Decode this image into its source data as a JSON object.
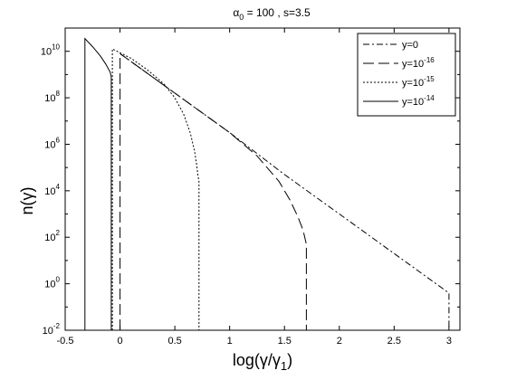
{
  "chart_data": {
    "type": "line",
    "title_main": "α",
    "title_sub": "0",
    "title_rest": " = 100 , s=3.5",
    "xlabel_main": "log(γ/γ",
    "xlabel_sub": "1",
    "xlabel_end": ")",
    "ylabel": "n(γ)",
    "xlim": [
      -0.5,
      3.1
    ],
    "ylim_log10": [
      -2,
      11
    ],
    "y_scale": "log",
    "grid": false,
    "legend_position": "top-right",
    "xticks": [
      {
        "value": -0.5,
        "label": "-0.5"
      },
      {
        "value": 0,
        "label": "0"
      },
      {
        "value": 0.5,
        "label": "0.5"
      },
      {
        "value": 1,
        "label": "1"
      },
      {
        "value": 1.5,
        "label": "1.5"
      },
      {
        "value": 2,
        "label": "2"
      },
      {
        "value": 2.5,
        "label": "2.5"
      },
      {
        "value": 3,
        "label": "3"
      }
    ],
    "yticks": [
      {
        "exp": -2,
        "base": "10",
        "sup": "-2"
      },
      {
        "exp": 0,
        "base": "10",
        "sup": "0"
      },
      {
        "exp": 2,
        "base": "10",
        "sup": "2"
      },
      {
        "exp": 4,
        "base": "10",
        "sup": "4"
      },
      {
        "exp": 6,
        "base": "10",
        "sup": "6"
      },
      {
        "exp": 8,
        "base": "10",
        "sup": "8"
      },
      {
        "exp": 10,
        "base": "10",
        "sup": "10"
      }
    ],
    "series": [
      {
        "label_base": "y=0",
        "label_sup": "",
        "dash": "7,3,2,3",
        "points": [
          [
            0,
            9.9
          ],
          [
            0.5,
            8.2
          ],
          [
            1,
            6.5
          ],
          [
            1.5,
            4.7
          ],
          [
            2,
            3.0
          ],
          [
            2.5,
            1.3
          ],
          [
            3,
            -0.4
          ],
          [
            3,
            -2
          ]
        ]
      },
      {
        "label_base": "y=10",
        "label_sup": "-16",
        "dash": "12,5",
        "points": [
          [
            0,
            -2
          ],
          [
            0,
            9.9
          ],
          [
            0.5,
            8.2
          ],
          [
            1,
            6.5
          ],
          [
            1.25,
            5.5
          ],
          [
            1.45,
            4.4
          ],
          [
            1.55,
            3.6
          ],
          [
            1.62,
            2.9
          ],
          [
            1.67,
            2.3
          ],
          [
            1.69,
            1.9
          ],
          [
            1.7,
            1.7
          ],
          [
            1.7,
            -2
          ]
        ]
      },
      {
        "label_base": "y=10",
        "label_sup": "-15",
        "dash": "2,2",
        "points": [
          [
            -0.07,
            -2
          ],
          [
            -0.07,
            10.1
          ],
          [
            0.1,
            9.7
          ],
          [
            0.25,
            9.2
          ],
          [
            0.4,
            8.6
          ],
          [
            0.5,
            8.0
          ],
          [
            0.58,
            7.3
          ],
          [
            0.64,
            6.5
          ],
          [
            0.68,
            5.7
          ],
          [
            0.7,
            5.1
          ],
          [
            0.71,
            4.7
          ],
          [
            0.72,
            4.4
          ],
          [
            0.72,
            -2
          ]
        ]
      },
      {
        "label_base": "y=10",
        "label_sup": "-14",
        "dash": "",
        "points": [
          [
            -0.32,
            -2
          ],
          [
            -0.32,
            10.55
          ],
          [
            -0.25,
            10.2
          ],
          [
            -0.18,
            9.8
          ],
          [
            -0.13,
            9.45
          ],
          [
            -0.09,
            9.1
          ],
          [
            -0.08,
            8.9
          ],
          [
            -0.08,
            -2
          ]
        ]
      }
    ]
  }
}
